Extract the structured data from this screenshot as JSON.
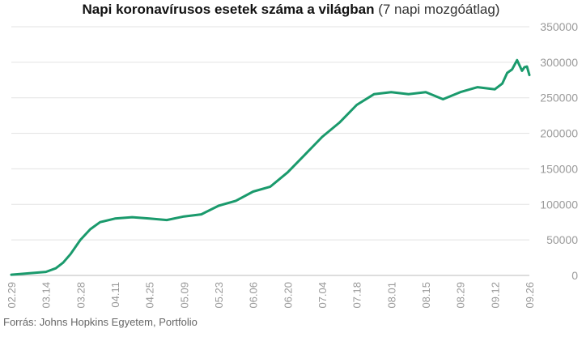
{
  "chart_data": {
    "type": "line",
    "title": "Napi koronavírusos esetek száma a világban",
    "subtitle": "(7 napi mozgóátlag)",
    "xlabel": "",
    "ylabel": "",
    "ylim": [
      0,
      350000
    ],
    "yticks": [
      "0",
      "50000",
      "100000",
      "150000",
      "200000",
      "250000",
      "300000",
      "350000"
    ],
    "grid": true,
    "x_tick_labels": [
      "02.29",
      "03.14",
      "03.28",
      "04.11",
      "04.25",
      "05.09",
      "05.23",
      "06.06",
      "06.20",
      "07.04",
      "07.18",
      "08.01",
      "08.15",
      "08.29",
      "09.12",
      "09.26"
    ],
    "series": [
      {
        "name": "7 napi mozgóátlag",
        "color": "#1a9a6c",
        "x": [
          0,
          7,
          14,
          18,
          21,
          24,
          28,
          32,
          36,
          42,
          49,
          56,
          63,
          70,
          77,
          84,
          91,
          98,
          105,
          112,
          119,
          126,
          133,
          140,
          147,
          154,
          161,
          168,
          175,
          182,
          189,
          196,
          199,
          201,
          203,
          205,
          207,
          208,
          209,
          210
        ],
        "values": [
          1000,
          3000,
          5000,
          10000,
          18000,
          30000,
          50000,
          65000,
          75000,
          80000,
          82000,
          80000,
          78000,
          83000,
          86000,
          98000,
          105000,
          118000,
          125000,
          145000,
          170000,
          195000,
          215000,
          240000,
          255000,
          258000,
          255000,
          258000,
          248000,
          258000,
          265000,
          262000,
          270000,
          285000,
          290000,
          303000,
          288000,
          293000,
          294000,
          282000
        ]
      }
    ]
  },
  "source": "Forrás: Johns Hopkins Egyetem, Portfolio"
}
